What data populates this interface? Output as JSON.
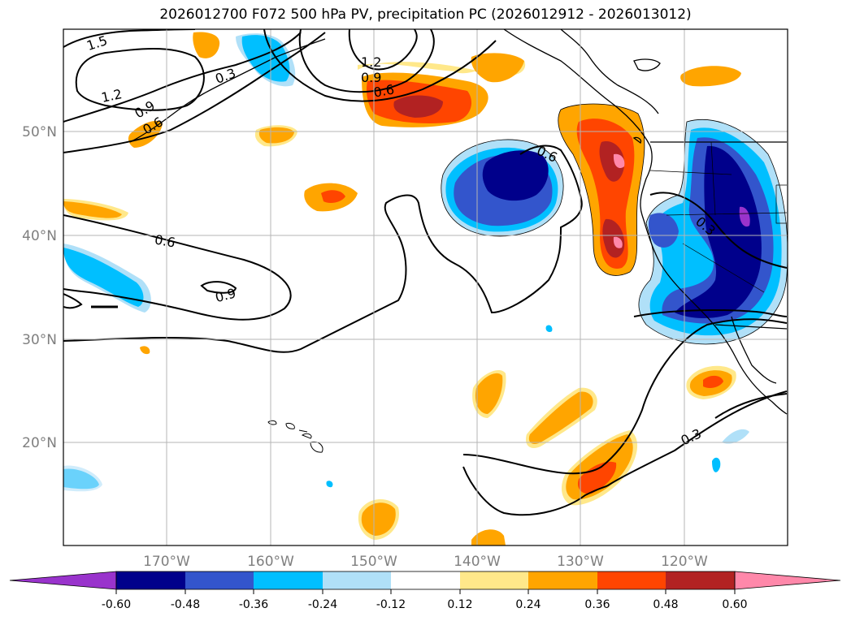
{
  "title": "2026012700 F072 500 hPa PV, precipitation PC (2026012912 - 2026013012)",
  "map": {
    "lat_labels": [
      "50°N",
      "40°N",
      "30°N",
      "20°N"
    ],
    "lon_labels": [
      "170°W",
      "160°W",
      "150°W",
      "140°W",
      "130°W",
      "120°W"
    ],
    "contour_labels": [
      "1.5",
      "1.2",
      "0.9",
      "0.6",
      "0.3",
      "1.2",
      "0.9",
      "0.6",
      "0.6",
      "0.6",
      "0.9",
      "0.3",
      "0.3"
    ]
  },
  "colorbar": {
    "tick_labels": [
      "-0.60",
      "-0.48",
      "-0.36",
      "-0.24",
      "-0.12",
      "0.12",
      "0.24",
      "0.36",
      "0.48",
      "0.60"
    ],
    "colors": [
      "#9933cc",
      "#00008b",
      "#3355cc",
      "#00bfff",
      "#b0e0f8",
      "#ffffff",
      "#ffe88a",
      "#ffa500",
      "#ff4500",
      "#b22222",
      "#ff88aa"
    ]
  },
  "colors": {
    "pos_low": "#ffe88a",
    "pos_mid": "#ffa500",
    "pos_high": "#ff4500",
    "pos_higher": "#b22222",
    "pos_max": "#ff88aa",
    "neg_low": "#b0e0f8",
    "neg_mid": "#00bfff",
    "neg_high": "#3355cc",
    "neg_higher": "#00008b",
    "neg_max": "#9933cc"
  }
}
